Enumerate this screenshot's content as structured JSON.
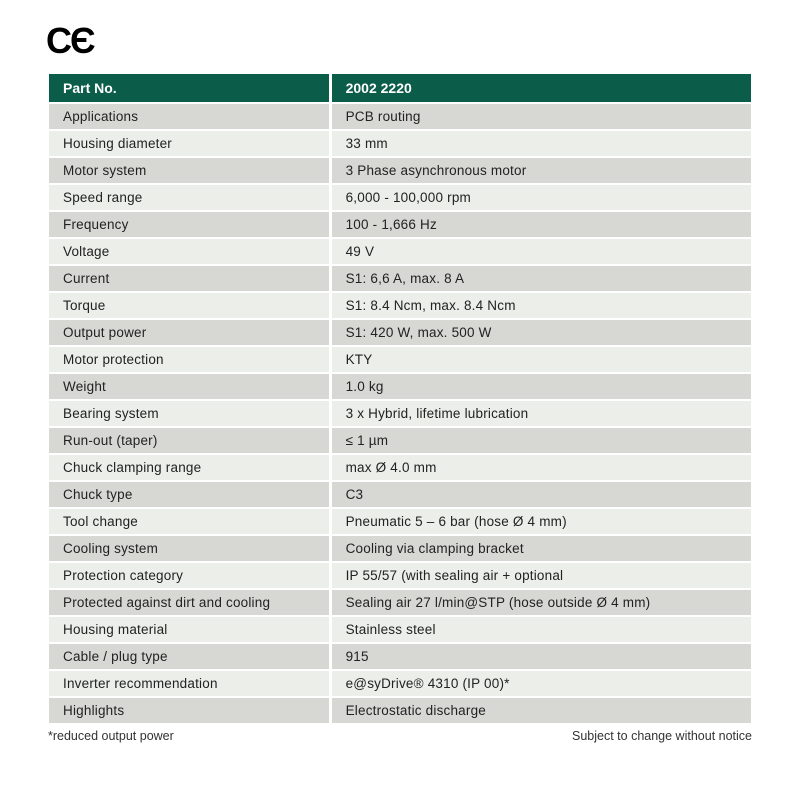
{
  "ce_mark": "CЄ",
  "table": {
    "header_bg": "#0b5d4a",
    "header_color": "#ffffff",
    "row_odd_bg": "#d7d8d4",
    "row_even_bg": "#eceee9",
    "columns": [
      "Part No.",
      "2002 2220"
    ],
    "rows": [
      [
        "Applications",
        "PCB routing"
      ],
      [
        "Housing diameter",
        "33 mm"
      ],
      [
        "Motor system",
        "3 Phase asynchronous motor"
      ],
      [
        "Speed range",
        "6,000 - 100,000 rpm"
      ],
      [
        "Frequency",
        "100 - 1,666 Hz"
      ],
      [
        "Voltage",
        "49 V"
      ],
      [
        "Current",
        "S1: 6,6 A, max. 8 A"
      ],
      [
        "Torque",
        "S1: 8.4 Ncm, max. 8.4 Ncm"
      ],
      [
        "Output power",
        "S1: 420 W, max. 500 W"
      ],
      [
        "Motor protection",
        "KTY"
      ],
      [
        "Weight",
        "1.0 kg"
      ],
      [
        "Bearing system",
        "3 x Hybrid, lifetime lubrication"
      ],
      [
        "Run-out (taper)",
        "≤ 1 µm"
      ],
      [
        "Chuck clamping range",
        "max Ø 4.0 mm"
      ],
      [
        "Chuck type",
        "C3"
      ],
      [
        "Tool change",
        "Pneumatic 5 – 6 bar (hose Ø 4 mm)"
      ],
      [
        "Cooling system",
        "Cooling via clamping bracket"
      ],
      [
        "Protection category",
        "IP 55/57 (with sealing air + optional"
      ],
      [
        "Protected against dirt and cooling",
        "Sealing air 27 l/min@STP (hose outside Ø 4 mm)"
      ],
      [
        "Housing material",
        "Stainless steel"
      ],
      [
        "Cable / plug type",
        "915"
      ],
      [
        "Inverter recommendation",
        "e@syDrive® 4310 (IP 00)*"
      ],
      [
        "Highlights",
        "Electrostatic discharge"
      ]
    ]
  },
  "footnote_left": "*reduced output power",
  "footnote_right": "Subject to change without notice"
}
